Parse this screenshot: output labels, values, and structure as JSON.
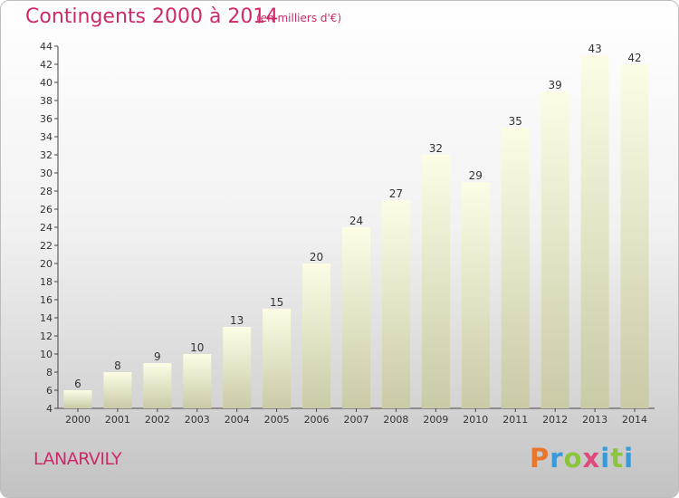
{
  "header": {
    "title": "Contingents 2000 à 2014",
    "subtitle": "(en milliers d'€)"
  },
  "footer": {
    "commune": "LANARVILY",
    "logo_text": "Proxiti"
  },
  "colors": {
    "title": "#cc2a6a",
    "bar_top": "#fdfde6",
    "bar_bottom": "#cacaa7"
  },
  "chart_data": {
    "type": "bar",
    "categories": [
      "2000",
      "2001",
      "2002",
      "2003",
      "2004",
      "2005",
      "2006",
      "2007",
      "2008",
      "2009",
      "2010",
      "2011",
      "2012",
      "2013",
      "2014"
    ],
    "values": [
      6,
      8,
      9,
      10,
      13,
      15,
      20,
      24,
      27,
      32,
      29,
      35,
      39,
      43,
      42
    ],
    "title": "Contingents 2000 à 2014",
    "subtitle": "(en milliers d'€)",
    "ylim": [
      4,
      44
    ],
    "yticks": [
      4,
      6,
      8,
      10,
      12,
      14,
      16,
      18,
      20,
      22,
      24,
      26,
      28,
      30,
      32,
      34,
      36,
      38,
      40,
      42,
      44
    ],
    "grid": false,
    "legend": "none"
  }
}
